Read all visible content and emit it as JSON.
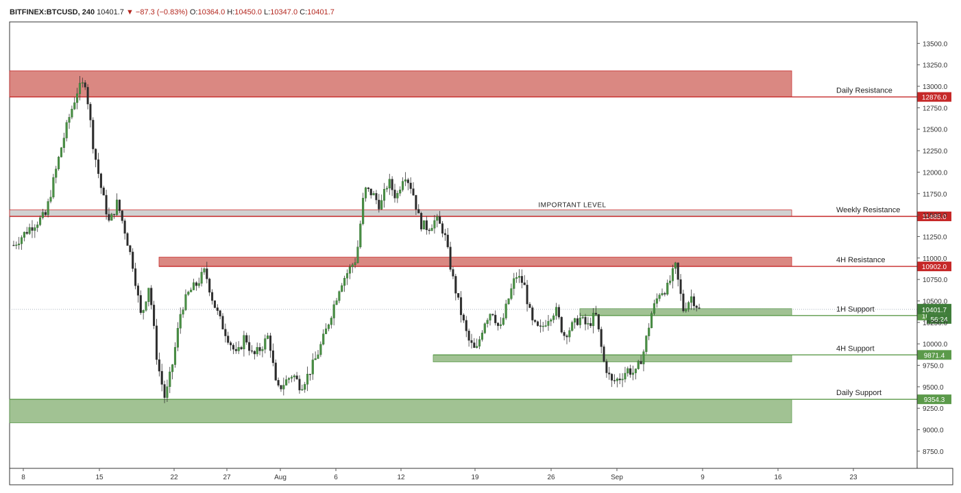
{
  "legend": {
    "symbol": "BITFINEX:BTCUSD, 240",
    "last": "10401.7",
    "arrow": "▼",
    "change": "−87.3 (−0.83%)",
    "o_label": "O:",
    "o_value": "10364.0",
    "h_label": "H:",
    "h_value": "10450.0",
    "l_label": "L:",
    "l_value": "10347.0",
    "c_label": "C:",
    "c_value": "10401.7"
  },
  "chart_data": {
    "type": "candlestick",
    "symbol": "BITFINEX:BTCUSD",
    "timeframe": "240",
    "ylim": [
      8550,
      13750
    ],
    "x_ticks": [
      "8",
      "15",
      "22",
      "27",
      "Aug",
      "6",
      "12",
      "19",
      "26",
      "Sep",
      "9",
      "16",
      "23"
    ],
    "y_ticks": [
      "8750.0",
      "9000.0",
      "9250.0",
      "9500.0",
      "9750.0",
      "10000.0",
      "10250.0",
      "10500.0",
      "10750.0",
      "11000.0",
      "11250.0",
      "11500.0",
      "11750.0",
      "12000.0",
      "12250.0",
      "12500.0",
      "12750.0",
      "13000.0",
      "13250.0",
      "13500.0"
    ],
    "y_tick_values": [
      8750,
      9000,
      9250,
      9500,
      9750,
      10000,
      10250,
      10500,
      10750,
      11000,
      11250,
      11500,
      11750,
      12000,
      12250,
      12500,
      12750,
      13000,
      13250,
      13500
    ],
    "zones": [
      {
        "label": "Daily Resistance",
        "low": 12876,
        "high": 13180,
        "color": "#d9827c",
        "level": 12876,
        "level_label": "12876.0",
        "level_color": "#c62828"
      },
      {
        "label": "Weekly Resistance",
        "low": 11485,
        "high": 11560,
        "color": "#cfcfcf",
        "level": 11485,
        "level_label": "11485.0",
        "level_color": "#c62828",
        "note": "IMPORTANT LEVEL"
      },
      {
        "label": "4H Resistance",
        "low": 10902,
        "high": 11010,
        "color": "#d9827c",
        "level": 10902,
        "level_label": "10902.0",
        "level_color": "#c62828"
      },
      {
        "label": "1H Support",
        "low": 10330,
        "high": 10410,
        "color": "#9dbf8e",
        "level": 10330,
        "level_label": "10330.0",
        "level_color": "#5b9a4a"
      },
      {
        "label": "4H Support",
        "low": 9790,
        "high": 9871.4,
        "color": "#9dbf8e",
        "level": 9871.4,
        "level_label": "9871.4",
        "level_color": "#5b9a4a"
      },
      {
        "label": "Daily Support",
        "low": 9080,
        "high": 9354.3,
        "color": "#9dbf8e",
        "level": 9354.3,
        "level_label": "9354.3",
        "level_color": "#5b9a4a"
      }
    ],
    "current_price": {
      "value": 10401.7,
      "label": "10401.7",
      "countdown": "56:24",
      "color": "#3f7d3a"
    },
    "price_path": [
      [
        0,
        11150
      ],
      [
        2,
        11350
      ],
      [
        4,
        11500
      ],
      [
        5,
        11900
      ],
      [
        6,
        12300
      ],
      [
        7,
        12650
      ],
      [
        8,
        12950
      ],
      [
        9,
        13050
      ],
      [
        10,
        12300
      ],
      [
        11,
        11800
      ],
      [
        12,
        11400
      ],
      [
        13,
        11650
      ],
      [
        14,
        11300
      ],
      [
        15,
        10900
      ],
      [
        16,
        10300
      ],
      [
        17,
        10700
      ],
      [
        18,
        9800
      ],
      [
        19,
        9350
      ],
      [
        20,
        9800
      ],
      [
        21,
        10400
      ],
      [
        22,
        10600
      ],
      [
        23,
        10700
      ],
      [
        24,
        10850
      ],
      [
        25,
        10500
      ],
      [
        26,
        10250
      ],
      [
        27,
        10050
      ],
      [
        28,
        9850
      ],
      [
        29,
        10100
      ],
      [
        30,
        9850
      ],
      [
        31,
        9950
      ],
      [
        32,
        10100
      ],
      [
        33,
        9450
      ],
      [
        34,
        9550
      ],
      [
        35,
        9650
      ],
      [
        36,
        9500
      ],
      [
        37,
        9650
      ],
      [
        38,
        9850
      ],
      [
        39,
        10100
      ],
      [
        40,
        10400
      ],
      [
        41,
        10700
      ],
      [
        42,
        10850
      ],
      [
        43,
        11000
      ],
      [
        44,
        11800
      ],
      [
        45,
        11750
      ],
      [
        46,
        11600
      ],
      [
        47,
        11900
      ],
      [
        48,
        11700
      ],
      [
        49,
        12000
      ],
      [
        50,
        11800
      ],
      [
        51,
        11400
      ],
      [
        52,
        11350
      ],
      [
        53,
        11450
      ],
      [
        54,
        11300
      ],
      [
        55,
        10800
      ],
      [
        56,
        10400
      ],
      [
        57,
        10050
      ],
      [
        58,
        9900
      ],
      [
        59,
        10250
      ],
      [
        60,
        10400
      ],
      [
        61,
        10150
      ],
      [
        62,
        10500
      ],
      [
        63,
        10800
      ],
      [
        64,
        10700
      ],
      [
        65,
        10250
      ],
      [
        66,
        10150
      ],
      [
        67,
        10300
      ],
      [
        68,
        10400
      ],
      [
        69,
        10100
      ],
      [
        70,
        10200
      ],
      [
        71,
        10300
      ],
      [
        72,
        10200
      ],
      [
        73,
        10350
      ],
      [
        74,
        9800
      ],
      [
        75,
        9550
      ],
      [
        76,
        9600
      ],
      [
        77,
        9700
      ],
      [
        78,
        9650
      ],
      [
        79,
        9900
      ],
      [
        80,
        10350
      ],
      [
        81,
        10600
      ],
      [
        82,
        10650
      ],
      [
        83,
        10900
      ],
      [
        84,
        10400
      ],
      [
        85,
        10550
      ],
      [
        86,
        10401.7
      ]
    ]
  }
}
